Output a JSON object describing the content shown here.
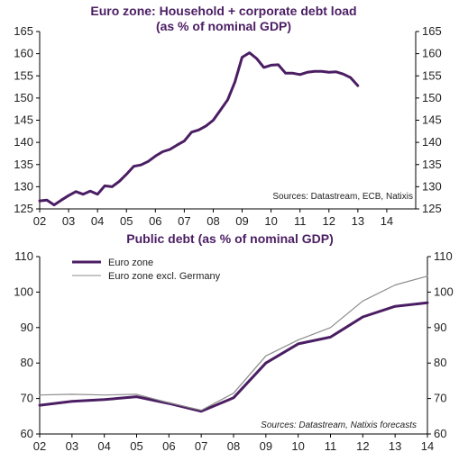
{
  "chart_data": [
    {
      "type": "line",
      "title": "Euro zone: Household + corporate debt load",
      "subtitle": "(as % of nominal GDP)",
      "x_ticks": [
        "02",
        "03",
        "04",
        "05",
        "06",
        "07",
        "08",
        "09",
        "10",
        "11",
        "12",
        "13",
        "14"
      ],
      "xlim": [
        2002,
        2015
      ],
      "y_ticks": [
        125,
        130,
        135,
        140,
        145,
        150,
        155,
        160,
        165
      ],
      "ylim": [
        125,
        165
      ],
      "source": "Sources: Datastream, ECB, Natixis",
      "grid": false,
      "series": [
        {
          "color": "#4b1e63",
          "points": [
            [
              2002.0,
              126.8
            ],
            [
              2002.25,
              127.0
            ],
            [
              2002.5,
              125.9
            ],
            [
              2002.75,
              127.0
            ],
            [
              2003.0,
              128.0
            ],
            [
              2003.25,
              128.9
            ],
            [
              2003.5,
              128.3
            ],
            [
              2003.75,
              129.0
            ],
            [
              2004.0,
              128.3
            ],
            [
              2004.25,
              130.2
            ],
            [
              2004.5,
              130.0
            ],
            [
              2004.75,
              131.2
            ],
            [
              2005.0,
              132.8
            ],
            [
              2005.25,
              134.6
            ],
            [
              2005.5,
              134.9
            ],
            [
              2005.75,
              135.7
            ],
            [
              2006.0,
              136.9
            ],
            [
              2006.25,
              137.9
            ],
            [
              2006.5,
              138.4
            ],
            [
              2006.75,
              139.4
            ],
            [
              2007.0,
              140.3
            ],
            [
              2007.25,
              142.3
            ],
            [
              2007.5,
              142.8
            ],
            [
              2007.75,
              143.7
            ],
            [
              2008.0,
              145.0
            ],
            [
              2008.25,
              147.3
            ],
            [
              2008.5,
              149.6
            ],
            [
              2008.75,
              153.6
            ],
            [
              2009.0,
              159.2
            ],
            [
              2009.25,
              160.2
            ],
            [
              2009.5,
              158.9
            ],
            [
              2009.75,
              156.9
            ],
            [
              2010.0,
              157.4
            ],
            [
              2010.25,
              157.5
            ],
            [
              2010.5,
              155.6
            ],
            [
              2010.75,
              155.6
            ],
            [
              2011.0,
              155.3
            ],
            [
              2011.25,
              155.8
            ],
            [
              2011.5,
              156.0
            ],
            [
              2011.75,
              156.0
            ],
            [
              2012.0,
              155.8
            ],
            [
              2012.25,
              155.9
            ],
            [
              2012.5,
              155.4
            ],
            [
              2012.75,
              154.6
            ],
            [
              2013.0,
              152.8
            ]
          ]
        }
      ]
    },
    {
      "type": "line",
      "title": "Public debt (as % of nominal GDP)",
      "x_ticks": [
        "02",
        "03",
        "04",
        "05",
        "06",
        "07",
        "08",
        "09",
        "10",
        "11",
        "12",
        "13",
        "14"
      ],
      "xlim": [
        2002,
        2014
      ],
      "y_ticks": [
        60,
        70,
        80,
        90,
        100,
        110
      ],
      "ylim": [
        60,
        110
      ],
      "source": "Sources: Datastream, Natixis forecasts",
      "legend_placement": "top-left",
      "grid": false,
      "series": [
        {
          "name": "Euro zone",
          "color": "#4b1e63",
          "x": [
            2002,
            2003,
            2004,
            2005,
            2006,
            2007,
            2008,
            2009,
            2010,
            2011,
            2012,
            2013,
            2014
          ],
          "values": [
            68.1,
            69.2,
            69.7,
            70.5,
            68.6,
            66.4,
            70.2,
            80.0,
            85.4,
            87.3,
            93.0,
            96.0,
            97.0
          ]
        },
        {
          "name": "Euro zone excl. Germany",
          "color": "#8c8c8c",
          "x": [
            2002,
            2003,
            2004,
            2005,
            2006,
            2007,
            2008,
            2009,
            2010,
            2011,
            2012,
            2013,
            2014
          ],
          "values": [
            71.0,
            71.2,
            71.0,
            71.2,
            68.8,
            66.7,
            71.5,
            82.0,
            86.5,
            90.0,
            97.5,
            102.0,
            104.5
          ]
        }
      ]
    }
  ]
}
